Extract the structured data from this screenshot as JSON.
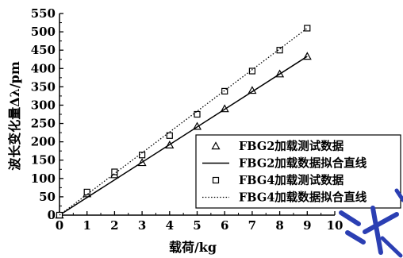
{
  "chart_data": {
    "type": "line",
    "xlabel": "载荷/kg",
    "ylabel": "波长变化量Δλ/pm",
    "xlim": [
      0,
      10
    ],
    "ylim": [
      0,
      550
    ],
    "x_ticks": [
      0,
      1,
      2,
      3,
      4,
      5,
      6,
      7,
      8,
      9,
      10
    ],
    "y_ticks": [
      0,
      50,
      100,
      150,
      200,
      250,
      300,
      350,
      400,
      450,
      500,
      550
    ],
    "grid": false,
    "legend_position": "bottom-right",
    "series": [
      {
        "name": "FBG2加载测试数据",
        "kind": "scatter",
        "marker": "triangle",
        "x": [
          0,
          1,
          2,
          3,
          4,
          5,
          6,
          7,
          8,
          9
        ],
        "y": [
          0,
          58,
          110,
          143,
          191,
          242,
          290,
          340,
          385,
          433
        ]
      },
      {
        "name": "FBG2加载数据拟合直线",
        "kind": "line",
        "style": "solid",
        "x": [
          0,
          9
        ],
        "y": [
          0,
          433
        ]
      },
      {
        "name": "FBG4加载测试数据",
        "kind": "scatter",
        "marker": "square",
        "x": [
          0,
          1,
          2,
          3,
          4,
          5,
          6,
          7,
          8,
          9
        ],
        "y": [
          0,
          63,
          118,
          164,
          217,
          275,
          338,
          393,
          450,
          510
        ]
      },
      {
        "name": "FBG4加载数据拟合直线",
        "kind": "line",
        "style": "dotted",
        "x": [
          0,
          9
        ],
        "y": [
          0,
          510
        ]
      }
    ]
  },
  "colors": {
    "ink": "#000000",
    "watermark": "#2b3fb3"
  }
}
